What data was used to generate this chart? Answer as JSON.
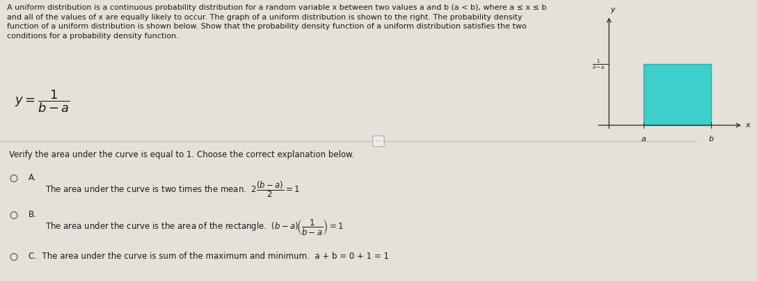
{
  "bg_color": "#e5e1d8",
  "text_color": "#1a1a1a",
  "rect_color": "#3ecfca",
  "rect_edge_color": "#2aadaa",
  "graph_bg": "#e5e1d8",
  "desc_line1": "A uniform distribution is a continuous probability distribution for a random variable x between two values a and b (a < b), where a ≤ x ≤ b",
  "desc_line2": "and all of the values of x are equally likely to occur. The graph of a uniform distribution is shown to the right. The probability density",
  "desc_line3": "function of a uniform distribution is shown below. Show that the probability density function of a uniform distribution satisfies the two",
  "desc_line4": "conditions for a probability density function.",
  "verify_text": "Verify the area under the curve is equal to 1. Choose the correct explanation below.",
  "optA_text": "The area under the curve is two times the mean.",
  "optA_formula": "2\\frac{(b-a)}{2} = 1",
  "optB_text": "The area under the curve is the area of the rectangle.",
  "optB_formula": "(b-a)\\left(\\frac{1}{b-a}\\right) = 1",
  "optC_text": "The area under the curve is sum of the maximum and minimum.  a + b = 0 + 1 = 1",
  "font_size_desc": 8.0,
  "font_size_body": 8.5,
  "font_size_formula": 10.5
}
